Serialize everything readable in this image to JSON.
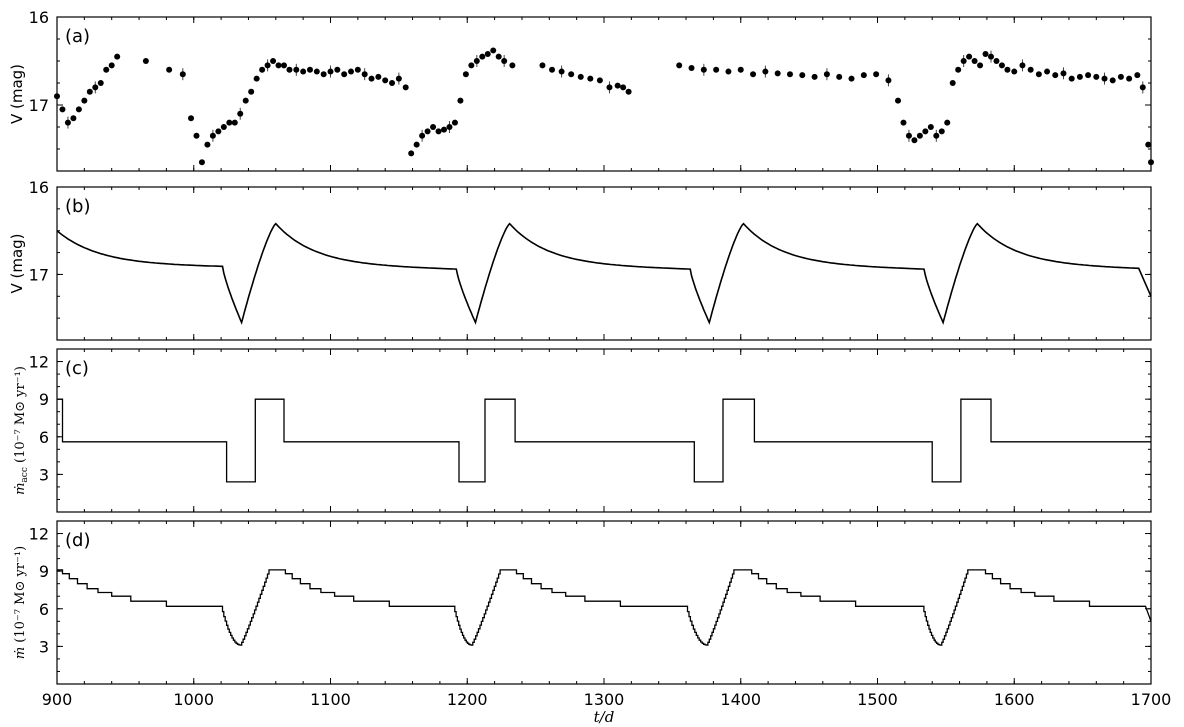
{
  "chart_data": {
    "type": "multi-panel",
    "xlabel": "t/d",
    "xlim": [
      900,
      1700
    ],
    "xticks": [
      900,
      1000,
      1100,
      1200,
      1300,
      1400,
      1500,
      1600,
      1700
    ],
    "panels": [
      {
        "id": "a",
        "label": "(a)",
        "type": "scatter",
        "ylabel": "V (mag)",
        "ylim": [
          16.0,
          17.75
        ],
        "y_inverted": true,
        "yticks": [
          16,
          17
        ],
        "segments": [
          {
            "x": [
              900,
              904,
              908,
              912,
              916,
              920,
              924,
              928,
              932,
              936,
              940,
              944
            ],
            "y": [
              16.9,
              17.05,
              17.2,
              17.15,
              17.05,
              16.95,
              16.85,
              16.8,
              16.75,
              16.6,
              16.55,
              16.45
            ]
          },
          {
            "x": [
              965,
              982,
              992,
              998,
              1002,
              1006,
              1010,
              1014,
              1018,
              1022,
              1026,
              1030,
              1034,
              1038,
              1042,
              1046,
              1050,
              1054,
              1058,
              1062,
              1066,
              1070,
              1075,
              1080,
              1085,
              1090,
              1095,
              1100,
              1105,
              1110,
              1115,
              1120,
              1125,
              1130,
              1135,
              1140,
              1145,
              1150,
              1155
            ],
            "y": [
              16.5,
              16.6,
              16.65,
              17.15,
              17.35,
              17.65,
              17.45,
              17.35,
              17.3,
              17.25,
              17.2,
              17.2,
              17.1,
              16.95,
              16.85,
              16.7,
              16.6,
              16.55,
              16.5,
              16.55,
              16.55,
              16.6,
              16.6,
              16.62,
              16.6,
              16.62,
              16.65,
              16.62,
              16.6,
              16.65,
              16.62,
              16.6,
              16.65,
              16.7,
              16.68,
              16.72,
              16.75,
              16.7,
              16.8
            ]
          },
          {
            "x": [
              1159,
              1163,
              1167,
              1171,
              1175,
              1179,
              1183,
              1187,
              1191,
              1195,
              1199,
              1203,
              1207,
              1211,
              1215,
              1219,
              1223,
              1227,
              1233
            ],
            "y": [
              17.55,
              17.45,
              17.35,
              17.3,
              17.25,
              17.3,
              17.28,
              17.25,
              17.2,
              16.95,
              16.65,
              16.55,
              16.5,
              16.45,
              16.42,
              16.38,
              16.45,
              16.5,
              16.55
            ]
          },
          {
            "x": [
              1255,
              1262,
              1269,
              1276,
              1283,
              1290,
              1297,
              1304,
              1310,
              1314,
              1318
            ],
            "y": [
              16.55,
              16.6,
              16.62,
              16.65,
              16.68,
              16.7,
              16.72,
              16.8,
              16.78,
              16.8,
              16.85
            ]
          },
          {
            "x": [
              1355,
              1364,
              1373,
              1382,
              1391,
              1400,
              1409,
              1418,
              1427,
              1436,
              1445,
              1454,
              1463,
              1472,
              1481,
              1490,
              1499,
              1508
            ],
            "y": [
              16.55,
              16.58,
              16.6,
              16.6,
              16.62,
              16.6,
              16.65,
              16.62,
              16.64,
              16.65,
              16.66,
              16.68,
              16.65,
              16.68,
              16.7,
              16.66,
              16.65,
              16.72
            ]
          },
          {
            "x": [
              1515,
              1519,
              1523,
              1527,
              1531,
              1535,
              1539,
              1543,
              1547,
              1551,
              1555,
              1559,
              1563,
              1567,
              1571,
              1575,
              1579,
              1583,
              1587,
              1591,
              1595,
              1600,
              1606,
              1612,
              1618,
              1624,
              1630,
              1636,
              1642,
              1648,
              1654,
              1660,
              1666,
              1672,
              1678,
              1684,
              1690,
              1694,
              1698,
              1700
            ],
            "y": [
              16.95,
              17.2,
              17.35,
              17.4,
              17.35,
              17.3,
              17.25,
              17.35,
              17.3,
              17.2,
              16.75,
              16.6,
              16.5,
              16.45,
              16.5,
              16.55,
              16.42,
              16.45,
              16.5,
              16.55,
              16.6,
              16.62,
              16.55,
              16.6,
              16.65,
              16.62,
              16.66,
              16.64,
              16.7,
              16.68,
              16.66,
              16.68,
              16.7,
              16.72,
              16.68,
              16.7,
              16.66,
              16.8,
              17.45,
              17.65
            ]
          }
        ]
      },
      {
        "id": "b",
        "label": "(b)",
        "type": "line",
        "ylabel": "V (mag)",
        "ylim": [
          16.0,
          17.75
        ],
        "y_inverted": true,
        "yticks": [
          16,
          17
        ],
        "cycle_period": 171,
        "dip_starts": [
          1021,
          1192,
          1363,
          1534
        ],
        "dip_minimum": 17.55,
        "peak_magnitude": 16.42,
        "plateau_magnitude": 16.89,
        "start_magnitude": 16.43,
        "end_magnitude": 17.25
      },
      {
        "id": "c",
        "label": "(c)",
        "type": "step",
        "ylabel_math": "ṁ",
        "ylabel_sub": "acc",
        "ylabel_units": "(10⁻⁷ M⊙ yr⁻¹)",
        "ylim": [
          0,
          13
        ],
        "yticks": [
          3,
          6,
          9,
          12
        ],
        "x": [
          900,
          904,
          904,
          1024,
          1024,
          1045,
          1045,
          1066,
          1066,
          1194,
          1194,
          1213,
          1213,
          1235,
          1235,
          1366,
          1366,
          1387,
          1387,
          1410,
          1410,
          1540,
          1540,
          1561,
          1561,
          1583,
          1583,
          1700
        ],
        "y": [
          9,
          9,
          5.6,
          5.6,
          2.4,
          2.4,
          9,
          9,
          5.6,
          5.6,
          2.4,
          2.4,
          9,
          9,
          5.6,
          5.6,
          2.4,
          2.4,
          9,
          9,
          5.6,
          5.6,
          2.4,
          2.4,
          9,
          9,
          5.6,
          5.6
        ]
      },
      {
        "id": "d",
        "label": "(d)",
        "type": "step",
        "ylabel_math": "ṁ",
        "ylabel_units": "(10⁻⁷ M⊙ yr⁻¹)",
        "ylim": [
          0,
          13
        ],
        "yticks": [
          3,
          6,
          9,
          12
        ],
        "cycles": [
          {
            "plateau_end": 1020,
            "minimum_at": 1034,
            "peak_start": 1055,
            "peak_end": 1067
          },
          {
            "plateau_end": 1190,
            "minimum_at": 1203,
            "peak_start": 1224,
            "peak_end": 1236
          },
          {
            "plateau_end": 1360,
            "minimum_at": 1375,
            "peak_start": 1395,
            "peak_end": 1408
          },
          {
            "plateau_end": 1533,
            "minimum_at": 1546,
            "peak_start": 1566,
            "peak_end": 1579
          }
        ],
        "minimum_value": 3.1,
        "peak_value": 9.1,
        "plateau_value": 6.2,
        "start_value": 9.1,
        "end_value": 5.0
      }
    ]
  }
}
